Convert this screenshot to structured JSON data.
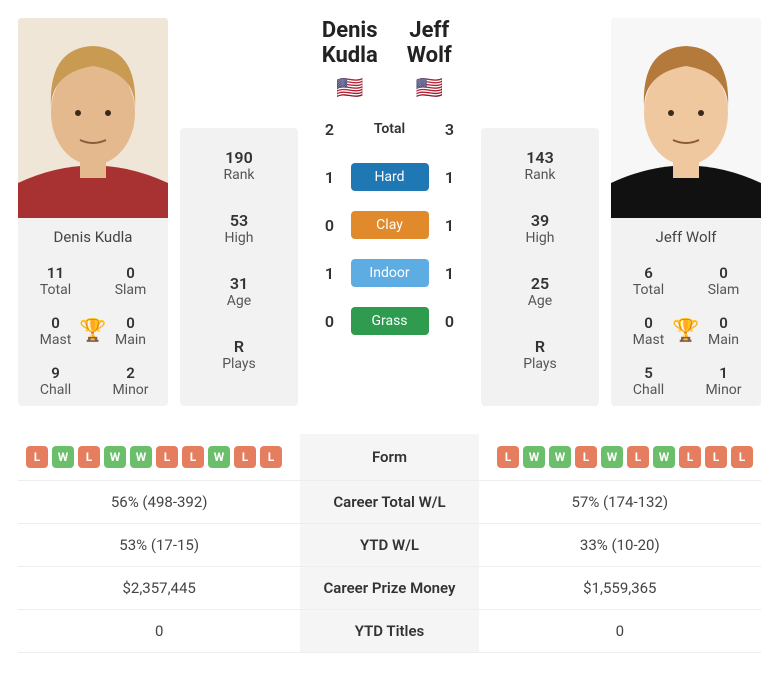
{
  "player1": {
    "name": "Denis Kudla",
    "flag": "🇺🇸",
    "rank": 190,
    "high": 53,
    "age": 31,
    "plays": "R",
    "titles": {
      "total": 11,
      "slam": 0,
      "mast": 0,
      "main": 0,
      "chall": 9,
      "minor": 2
    },
    "form": [
      "L",
      "W",
      "L",
      "W",
      "W",
      "L",
      "L",
      "W",
      "L",
      "L"
    ],
    "career_wl": "56% (498-392)",
    "ytd_wl": "53% (17-15)",
    "prize": "$2,357,445",
    "ytd_titles": 0,
    "photo": {
      "skin": "#e4b98e",
      "hair": "#c99a52",
      "shirt": "#a83232",
      "bg": "#efe6d8"
    }
  },
  "player2": {
    "name": "Jeff Wolf",
    "flag": "🇺🇸",
    "rank": 143,
    "high": 39,
    "age": 25,
    "plays": "R",
    "titles": {
      "total": 6,
      "slam": 0,
      "mast": 0,
      "main": 0,
      "chall": 5,
      "minor": 1
    },
    "form": [
      "L",
      "W",
      "W",
      "L",
      "W",
      "L",
      "W",
      "L",
      "L",
      "L"
    ],
    "career_wl": "57% (174-132)",
    "ytd_wl": "33% (10-20)",
    "prize": "$1,559,365",
    "ytd_titles": 0,
    "photo": {
      "skin": "#f0c8a0",
      "hair": "#b47a3c",
      "shirt": "#111111",
      "bg": "#f7f7f7"
    }
  },
  "h2h": {
    "total": [
      2,
      3
    ],
    "hard": [
      1,
      1
    ],
    "clay": [
      0,
      1
    ],
    "indoor": [
      1,
      1
    ],
    "grass": [
      0,
      0
    ]
  },
  "labels": {
    "rank": "Rank",
    "high": "High",
    "age": "Age",
    "plays": "Plays",
    "total": "Total",
    "slam": "Slam",
    "mast": "Mast",
    "main": "Main",
    "chall": "Chall",
    "minor": "Minor",
    "h2h_total": "Total",
    "hard": "Hard",
    "clay": "Clay",
    "indoor": "Indoor",
    "grass": "Grass",
    "form": "Form",
    "career_wl": "Career Total W/L",
    "ytd_wl": "YTD W/L",
    "prize": "Career Prize Money",
    "ytd_titles": "YTD Titles"
  },
  "colors": {
    "win": "#6bbf6b",
    "loss": "#e57e5e",
    "hard": "#1f77b4",
    "clay": "#e08a2c",
    "indoor": "#5dade2",
    "grass": "#2e9b4f",
    "card_bg": "#f2f2f2",
    "trophy": "#4a90d9"
  }
}
